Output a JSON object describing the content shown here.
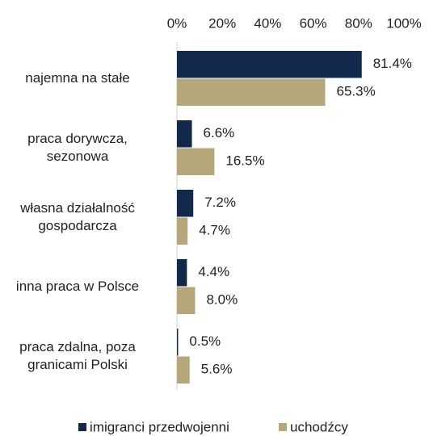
{
  "chart_data": {
    "type": "hbar",
    "categories": [
      "najemna na stałe",
      "praca dorywcza,\nsezonowa",
      "własna działalność\ngospodarcza",
      "inna praca w Polsce",
      "praca zdalna, poza\ngranicami Polski"
    ],
    "series": [
      {
        "name": "imigranci przedwojenni",
        "color": "#13294b",
        "values": [
          81.4,
          6.6,
          7.2,
          4.4,
          0.5
        ],
        "value_labels": [
          "81.4%",
          "6.6%",
          "7.2%",
          "4.4%",
          "0.5%"
        ]
      },
      {
        "name": "uchodźcy",
        "color": "#b5a77a",
        "values": [
          65.3,
          16.5,
          4.7,
          8.0,
          5.6
        ],
        "value_labels": [
          "65.3%",
          "16.5%",
          "4.7%",
          "8.0%",
          "5.6%"
        ]
      }
    ],
    "xlim": [
      0,
      100
    ],
    "xticks": [
      {
        "value": 0,
        "label": "0%"
      },
      {
        "value": 20,
        "label": "20%"
      },
      {
        "value": 40,
        "label": "40%"
      },
      {
        "value": 60,
        "label": "60%"
      },
      {
        "value": 80,
        "label": "80%"
      },
      {
        "value": 100,
        "label": "100%"
      }
    ],
    "legend": "bottom"
  }
}
